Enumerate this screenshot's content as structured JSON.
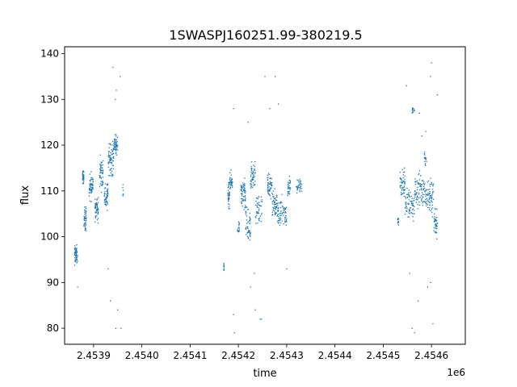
{
  "chart_data": {
    "type": "scatter",
    "title": "1SWASPJ160251.99-380219.5",
    "xlabel": "time",
    "ylabel": "flux",
    "x_offset_label": "1e6",
    "x_ticks": [
      2.4539,
      2.454,
      2.4541,
      2.4542,
      2.4543,
      2.4544,
      2.4545,
      2.4546
    ],
    "x_tick_labels": [
      "2.4539",
      "2.4540",
      "2.4541",
      "2.4542",
      "2.4543",
      "2.4544",
      "2.4545",
      "2.4546"
    ],
    "y_ticks": [
      80,
      90,
      100,
      110,
      120,
      130,
      140
    ],
    "y_tick_labels": [
      "80",
      "90",
      "100",
      "110",
      "120",
      "130",
      "140"
    ],
    "xlim": [
      2.45384,
      2.45467
    ],
    "ylim": [
      76.5,
      141.5
    ],
    "grid": false,
    "marker_color": "#1f77b4",
    "series": [
      {
        "clusters": [
          {
            "x0": 2.45386,
            "x1": 2.453867,
            "base": 96,
            "range": 3,
            "n": 60
          },
          {
            "x0": 2.453877,
            "x1": 2.45388,
            "base": 113,
            "range": 2,
            "n": 35
          },
          {
            "x0": 2.45388,
            "x1": 2.453885,
            "base": 104,
            "range": 4,
            "n": 45
          },
          {
            "x0": 2.453891,
            "x1": 2.453899,
            "base": 111,
            "range": 4,
            "n": 60
          },
          {
            "x0": 2.453903,
            "x1": 2.45391,
            "base": 106,
            "range": 4,
            "n": 50
          },
          {
            "x0": 2.453912,
            "x1": 2.45392,
            "base": 114,
            "range": 5,
            "n": 50
          },
          {
            "x0": 2.453922,
            "x1": 2.45393,
            "base": 109,
            "range": 4,
            "n": 55
          },
          {
            "x0": 2.45393,
            "x1": 2.453942,
            "base": 117,
            "range": 5,
            "n": 70
          },
          {
            "x0": 2.453942,
            "x1": 2.45395,
            "base": 120,
            "range": 3,
            "n": 50
          },
          {
            "x0": 2.45396,
            "x1": 2.453962,
            "base": 110,
            "range": 2,
            "n": 6
          },
          {
            "x0": 2.45417,
            "x1": 2.45417,
            "base": 93.5,
            "range": 2,
            "n": 10
          },
          {
            "x0": 2.454178,
            "x1": 2.454182,
            "base": 109,
            "range": 4,
            "n": 40
          },
          {
            "x0": 2.454182,
            "x1": 2.454188,
            "base": 112,
            "range": 3,
            "n": 30
          },
          {
            "x0": 2.454198,
            "x1": 2.454202,
            "base": 102,
            "range": 2,
            "n": 15
          },
          {
            "x0": 2.454205,
            "x1": 2.454215,
            "base": 109,
            "range": 5,
            "n": 60
          },
          {
            "x0": 2.454215,
            "x1": 2.454225,
            "base": 102,
            "range": 6,
            "n": 50
          },
          {
            "x0": 2.454225,
            "x1": 2.454235,
            "base": 113,
            "range": 5,
            "n": 50
          },
          {
            "x0": 2.454235,
            "x1": 2.45425,
            "base": 106,
            "range": 5,
            "n": 45
          },
          {
            "x0": 2.45426,
            "x1": 2.45427,
            "base": 111,
            "range": 4,
            "n": 50
          },
          {
            "x0": 2.45427,
            "x1": 2.45428,
            "base": 107,
            "range": 4,
            "n": 50
          },
          {
            "x0": 2.45428,
            "x1": 2.4543,
            "base": 105,
            "range": 5,
            "n": 70
          },
          {
            "x0": 2.454302,
            "x1": 2.454308,
            "base": 111,
            "range": 3,
            "n": 30
          },
          {
            "x0": 2.45432,
            "x1": 2.454332,
            "base": 111,
            "range": 2,
            "n": 35
          },
          {
            "x0": 2.45453,
            "x1": 2.454532,
            "base": 103.5,
            "range": 1.5,
            "n": 15
          },
          {
            "x0": 2.454535,
            "x1": 2.454545,
            "base": 112,
            "range": 5,
            "n": 50
          },
          {
            "x0": 2.454545,
            "x1": 2.454565,
            "base": 107,
            "range": 5,
            "n": 70
          },
          {
            "x0": 2.454565,
            "x1": 2.454585,
            "base": 110,
            "range": 6,
            "n": 80
          },
          {
            "x0": 2.454585,
            "x1": 2.454605,
            "base": 109,
            "range": 6,
            "n": 80
          },
          {
            "x0": 2.454605,
            "x1": 2.454612,
            "base": 103,
            "range": 4,
            "n": 40
          },
          {
            "x0": 2.45456,
            "x1": 2.454565,
            "base": 127.5,
            "range": 1.5,
            "n": 12
          },
          {
            "x0": 2.454585,
            "x1": 2.45459,
            "base": 117,
            "range": 3,
            "n": 15
          }
        ],
        "outliers": [
          [
            2.453867,
            89
          ],
          [
            2.45394,
            137
          ],
          [
            2.453947,
            132
          ],
          [
            2.453946,
            80
          ],
          [
            2.453957,
            80
          ],
          [
            2.45395,
            84
          ],
          [
            2.453955,
            135
          ],
          [
            2.45393,
            93
          ],
          [
            2.453935,
            86
          ],
          [
            2.453945,
            130
          ],
          [
            2.45419,
            128
          ],
          [
            2.45419,
            83
          ],
          [
            2.454192,
            79
          ],
          [
            2.454225,
            89
          ],
          [
            2.454235,
            84
          ],
          [
            2.454245,
            82
          ],
          [
            2.454255,
            135
          ],
          [
            2.454265,
            128
          ],
          [
            2.454276,
            135
          ],
          [
            2.454248,
            82
          ],
          [
            2.454233,
            92
          ],
          [
            2.45422,
            125
          ],
          [
            2.4543,
            93
          ],
          [
            2.454283,
            129
          ],
          [
            2.45456,
            80
          ],
          [
            2.454565,
            79
          ],
          [
            2.454575,
            127
          ],
          [
            2.454572,
            86
          ],
          [
            2.454592,
            89
          ],
          [
            2.454598,
            135
          ],
          [
            2.454603,
            81
          ],
          [
            2.4546,
            138
          ],
          [
            2.454588,
            123
          ],
          [
            2.454555,
            92
          ],
          [
            2.454548,
            133
          ],
          [
            2.454598,
            90
          ],
          [
            2.45458,
            122
          ],
          [
            2.454612,
            131
          ]
        ]
      }
    ]
  }
}
